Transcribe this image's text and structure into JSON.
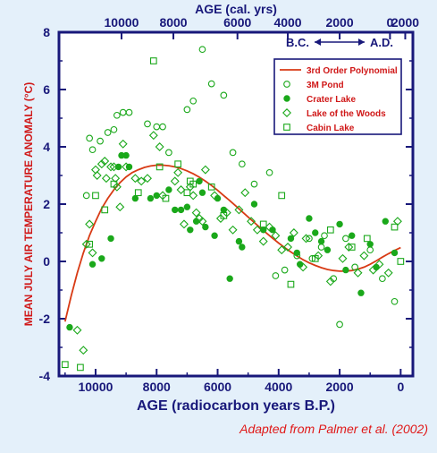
{
  "colors": {
    "background": "#e4f0fa",
    "plot_background": "#ffffff",
    "axis": "#18187a",
    "green": "#1aa81a",
    "curve": "#d83a14",
    "ylabel": "#d01818",
    "credit": "#e01818"
  },
  "credit": "Adapted from Palmer et al. (2002)",
  "chart_data": {
    "type": "scatter",
    "xlabel": "AGE (radiocarbon years B.P.)",
    "ylabel": "MEAN JULY AIR TEMPERATURE ANOMALY (°C)",
    "top_axis_label": "AGE (cal. yrs)",
    "era_label": "B.C. ⟷ A.D.",
    "era_left": "B.C.",
    "era_right": "A.D.",
    "x_reversed": true,
    "xlim": [
      11200,
      -400
    ],
    "ylim": [
      -4,
      8
    ],
    "x_ticks": [
      10000,
      8000,
      6000,
      4000,
      2000,
      0
    ],
    "x_tick_labels": [
      "10000",
      "8000",
      "6000",
      "4000",
      "2000",
      "0"
    ],
    "y_ticks": [
      -4,
      -2,
      0,
      2,
      4,
      6,
      8
    ],
    "y_tick_labels": [
      "-4",
      "-2",
      "0",
      "2",
      "4",
      "6",
      "8"
    ],
    "top_ticks": [
      {
        "x": 9150,
        "label": "10000"
      },
      {
        "x": 7450,
        "label": "8000"
      },
      {
        "x": 5350,
        "label": "6000"
      },
      {
        "x": 3700,
        "label": "4000"
      },
      {
        "x": 2000,
        "label": "2000"
      },
      {
        "x": 350,
        "label": "0"
      },
      {
        "x": -150,
        "label": "2000"
      }
    ],
    "legend_position": "top-right",
    "series": [
      {
        "name": "3rd Order Polynomial",
        "kind": "line",
        "x": [
          11000,
          10800,
          10600,
          10400,
          10200,
          10000,
          9800,
          9600,
          9400,
          9200,
          9000,
          8800,
          8600,
          8400,
          8200,
          8000,
          7800,
          7600,
          7400,
          7200,
          7000,
          6800,
          6600,
          6400,
          6200,
          6000,
          5800,
          5600,
          5400,
          5200,
          5000,
          4800,
          4600,
          4400,
          4200,
          4000,
          3800,
          3600,
          3400,
          3200,
          3000,
          2800,
          2600,
          2400,
          2200,
          2000,
          1800,
          1600,
          1400,
          1200,
          1000,
          800,
          600,
          400,
          200,
          0
        ],
        "y": [
          -2.1,
          -1.2,
          -0.4,
          0.3,
          0.9,
          1.4,
          1.85,
          2.2,
          2.5,
          2.75,
          2.95,
          3.1,
          3.2,
          3.28,
          3.33,
          3.36,
          3.36,
          3.34,
          3.3,
          3.24,
          3.16,
          3.06,
          2.94,
          2.8,
          2.65,
          2.48,
          2.3,
          2.12,
          1.93,
          1.74,
          1.55,
          1.36,
          1.17,
          0.99,
          0.81,
          0.64,
          0.48,
          0.33,
          0.19,
          0.06,
          -0.05,
          -0.14,
          -0.22,
          -0.28,
          -0.32,
          -0.34,
          -0.34,
          -0.32,
          -0.27,
          -0.2,
          -0.1,
          0.02,
          0.15,
          0.27,
          0.38,
          0.48
        ]
      },
      {
        "name": "3M Pond",
        "marker": "circle-open",
        "x": [
          10300,
          10200,
          10100,
          9850,
          9600,
          9400,
          9300,
          9100,
          8900,
          8300,
          8000,
          7800,
          7600,
          7000,
          6800,
          6500,
          6200,
          5800,
          5500,
          5200,
          4800,
          4300,
          4100,
          3800,
          3400,
          3000,
          2900,
          2600,
          2500,
          2200,
          2000,
          1800,
          1500,
          1000,
          600,
          200
        ],
        "y": [
          2.3,
          4.3,
          3.9,
          4.2,
          4.5,
          4.6,
          5.1,
          5.2,
          5.2,
          4.8,
          4.7,
          4.7,
          3.8,
          5.3,
          5.6,
          7.4,
          6.2,
          5.8,
          3.8,
          3.4,
          2.7,
          3.1,
          -0.5,
          -0.3,
          0.2,
          0.8,
          0.1,
          0.5,
          0.9,
          -0.6,
          -2.2,
          0.8,
          -0.2,
          0.4,
          -0.6,
          -1.4
        ]
      },
      {
        "name": "Crater Lake",
        "marker": "circle-filled",
        "x": [
          10850,
          10100,
          9800,
          9500,
          9250,
          9150,
          9000,
          8900,
          8700,
          8200,
          8000,
          7600,
          7400,
          7200,
          7000,
          6900,
          6700,
          6600,
          6500,
          6400,
          6100,
          6000,
          5800,
          5600,
          5300,
          5200,
          4800,
          4500,
          4200,
          3600,
          3400,
          3300,
          3000,
          2800,
          2600,
          2400,
          2000,
          1800,
          1600,
          1300,
          1000,
          800,
          500,
          200
        ],
        "y": [
          -2.3,
          -0.1,
          0.1,
          0.8,
          3.3,
          3.7,
          3.7,
          3.3,
          2.2,
          2.2,
          2.3,
          2.5,
          1.8,
          1.8,
          1.9,
          1.1,
          1.4,
          2.8,
          2.4,
          1.2,
          0.9,
          2.2,
          1.8,
          -0.6,
          0.7,
          0.5,
          2.0,
          1.1,
          1.1,
          0.8,
          0.3,
          -0.1,
          1.5,
          1.0,
          0.7,
          0.4,
          1.3,
          -0.3,
          0.9,
          -1.1,
          0.6,
          -0.2,
          1.4,
          0.3
        ]
      },
      {
        "name": "Lake of the Woods",
        "marker": "diamond-open",
        "x": [
          10600,
          10400,
          10300,
          10200,
          10100,
          10000,
          9950,
          9800,
          9700,
          9650,
          9500,
          9400,
          9350,
          9300,
          9200,
          9100,
          9000,
          8700,
          8500,
          8300,
          8100,
          7900,
          7800,
          7400,
          7300,
          7200,
          7100,
          6900,
          6800,
          6700,
          6600,
          6500,
          6400,
          6100,
          5900,
          5700,
          5500,
          5300,
          5100,
          4900,
          4700,
          4500,
          4300,
          4100,
          3900,
          3700,
          3500,
          3200,
          3100,
          2700,
          2300,
          1900,
          1700,
          1400,
          1200,
          900,
          700,
          400,
          100
        ],
        "y": [
          -2.4,
          -3.1,
          0.6,
          1.3,
          0.3,
          3.2,
          3.0,
          3.4,
          3.5,
          2.9,
          3.3,
          3.3,
          2.9,
          2.6,
          1.9,
          4.1,
          3.3,
          2.9,
          2.8,
          2.9,
          4.4,
          4.0,
          2.3,
          2.8,
          3.1,
          2.5,
          1.3,
          2.6,
          2.3,
          1.7,
          1.5,
          1.4,
          3.2,
          2.3,
          1.5,
          1.7,
          1.1,
          1.8,
          2.4,
          1.4,
          1.1,
          0.7,
          1.2,
          0.9,
          0.4,
          0.5,
          1.0,
          -0.2,
          0.8,
          0.2,
          -0.7,
          0.1,
          0.5,
          -0.4,
          0.2,
          -0.3,
          -0.1,
          -0.4,
          1.4
        ]
      },
      {
        "name": "Cabin Lake",
        "marker": "square-open",
        "x": [
          11000,
          10500,
          10200,
          10000,
          9700,
          9400,
          8600,
          8100,
          7900,
          7700,
          7300,
          7000,
          6900,
          6800,
          6200,
          5800,
          4500,
          3900,
          3600,
          2800,
          2300,
          1600,
          1100,
          200,
          0
        ],
        "y": [
          -3.6,
          -3.7,
          0.6,
          2.3,
          1.8,
          2.7,
          2.4,
          7.0,
          3.3,
          2.2,
          3.4,
          2.4,
          2.8,
          2.7,
          2.6,
          1.6,
          1.3,
          2.3,
          -0.8,
          0.1,
          1.1,
          0.5,
          0.8,
          1.2,
          0.0
        ]
      }
    ]
  }
}
